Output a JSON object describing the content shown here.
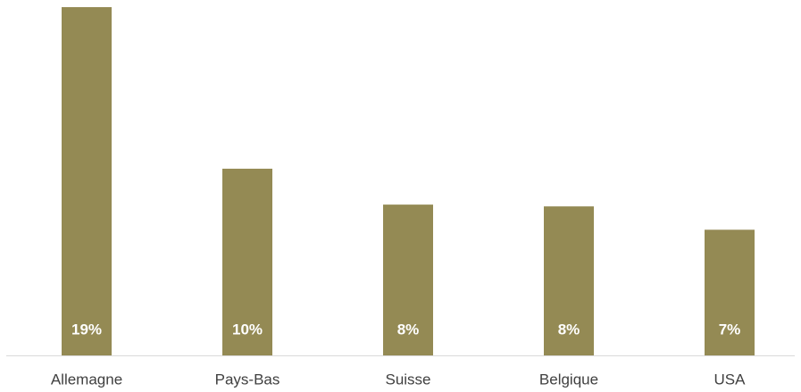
{
  "chart_data": {
    "type": "bar",
    "categories": [
      "Allemagne",
      "Pays-Bas",
      "Suisse",
      "Belgique",
      "USA"
    ],
    "values": [
      19.4,
      10.4,
      8.4,
      8.3,
      7.0
    ],
    "value_labels": [
      "19%",
      "10%",
      "8%",
      "8%",
      "7%"
    ],
    "color": "#948a54"
  }
}
